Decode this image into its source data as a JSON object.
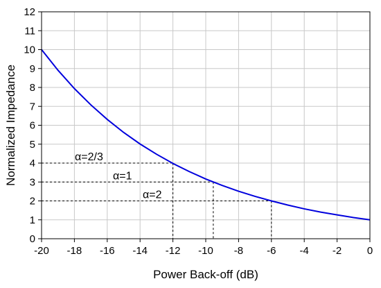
{
  "chart_data": {
    "type": "line",
    "title": "",
    "xlabel": "Power Back-off (dB)",
    "ylabel": "Normalized Impedance",
    "xlim": [
      -20,
      0
    ],
    "ylim": [
      0,
      12
    ],
    "xticks": [
      -20,
      -18,
      -16,
      -14,
      -12,
      -10,
      -8,
      -6,
      -4,
      -2,
      0
    ],
    "yticks": [
      0,
      1,
      2,
      3,
      4,
      5,
      6,
      7,
      8,
      9,
      10,
      11,
      12
    ],
    "grid": true,
    "series": [
      {
        "color": "#0000dd",
        "x": [
          -20,
          -19,
          -18,
          -17,
          -16,
          -15,
          -14,
          -13,
          -12,
          -11,
          -10,
          -9,
          -8,
          -7,
          -6,
          -5,
          -4,
          -3,
          -2,
          -1,
          0
        ],
        "y": [
          10.0,
          8.91,
          7.94,
          7.08,
          6.31,
          5.62,
          5.01,
          4.47,
          3.98,
          3.55,
          3.16,
          2.82,
          2.51,
          2.24,
          2.0,
          1.78,
          1.58,
          1.41,
          1.26,
          1.12,
          1.0
        ]
      }
    ],
    "annotations": [
      {
        "label": "α=2/3",
        "x": -12.0,
        "y": 4
      },
      {
        "label": "α=1",
        "x": -9.54,
        "y": 3
      },
      {
        "label": "α=2",
        "x": -6.0,
        "y": 2
      }
    ]
  }
}
